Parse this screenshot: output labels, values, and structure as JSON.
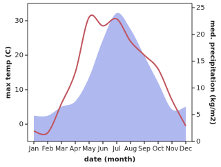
{
  "chart_data": {
    "type": "line-area",
    "x_label": "date (month)",
    "y_label": "max temp (C)",
    "y2_label": "med. precipitation (kg/m2)",
    "categories": [
      "Jan",
      "Feb",
      "Mar",
      "Apr",
      "May",
      "Jun",
      "Jul",
      "Aug",
      "Sep",
      "Oct",
      "Nov",
      "Dec"
    ],
    "series": [
      {
        "name": "max temp",
        "kind": "line",
        "color": "#c0555e",
        "values": [
          -2,
          -2.5,
          6,
          15,
          31,
          28.5,
          30.5,
          24,
          20,
          16,
          7,
          -0.5
        ]
      },
      {
        "name": "med. precipitation",
        "kind": "area",
        "axis": "y2",
        "color": "#b0b8f0",
        "values": [
          4.8,
          4.8,
          6.5,
          7.5,
          12,
          19,
          24,
          21,
          16,
          11,
          6,
          6.5
        ]
      }
    ],
    "ylim": [
      -5,
      35
    ],
    "yticks": [
      0,
      10,
      20,
      30
    ],
    "y2lim": [
      0,
      25.8
    ],
    "y2ticks": [
      0,
      5,
      10,
      15,
      20,
      25
    ]
  }
}
